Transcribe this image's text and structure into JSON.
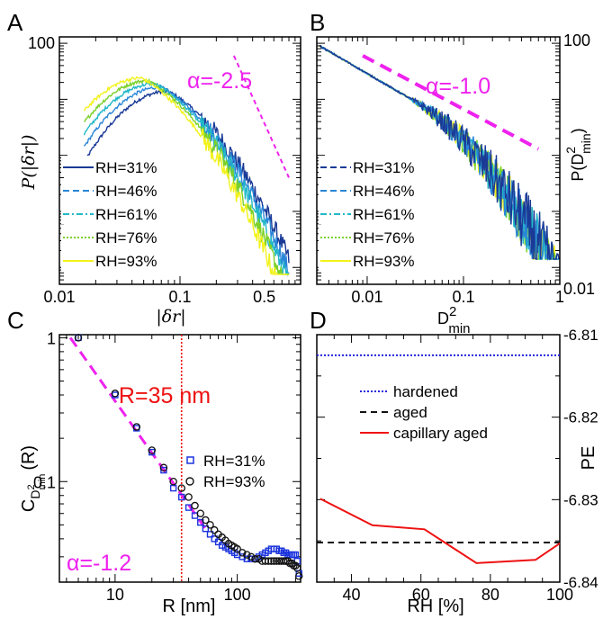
{
  "chart_data": [
    {
      "panel": "A",
      "type": "line",
      "panel_label": "A",
      "xlabel": "|δr|",
      "ylabel": "P(|δr|)",
      "xscale": "log",
      "yscale": "log",
      "xlim": [
        0.01,
        1
      ],
      "x_ticks": [
        {
          "value": 0.01,
          "label": "0.01"
        },
        {
          "value": 0.1,
          "label": "0.1"
        },
        {
          "value": 0.5,
          "label": "0.5"
        }
      ],
      "y_ticks": [
        {
          "value": 100,
          "label": "100"
        }
      ],
      "ylim": [
        0.005,
        130
      ],
      "legend_position": "bottom-left",
      "annotation": "α=-2.5",
      "guide_line": {
        "points": [
          [
            0.28,
            60
          ],
          [
            0.8,
            0.4
          ]
        ],
        "color": "#ee22ee",
        "style": "short-dash"
      },
      "series": [
        {
          "name": "RH=31%",
          "color": "#1a3a96",
          "style": "solid",
          "peak": 0.08
        },
        {
          "name": "RH=46%",
          "color": "#2a86d8",
          "style": "dash",
          "peak": 0.07
        },
        {
          "name": "RH=61%",
          "color": "#22b8c8",
          "style": "dashdot",
          "peak": 0.062
        },
        {
          "name": "RH=76%",
          "color": "#7cd02a",
          "style": "dot",
          "peak": 0.055
        },
        {
          "name": "RH=93%",
          "color": "#f2f21a",
          "style": "solid",
          "peak": 0.048
        }
      ]
    },
    {
      "panel": "B",
      "type": "line",
      "panel_label": "B",
      "xlabel": "D2min",
      "xlabel_main": "D",
      "xlabel_sup": "2",
      "xlabel_sub": "min",
      "ylabel_main": "P(D",
      "ylabel_sup": "2",
      "ylabel_sub": "min",
      "ylabel_end": ")",
      "xscale": "log",
      "yscale": "log",
      "xlim": [
        0.003,
        1
      ],
      "x_ticks": [
        {
          "value": 0.01,
          "label": "0.01"
        },
        {
          "value": 0.1,
          "label": "0.1"
        },
        {
          "value": 1,
          "label": "1"
        }
      ],
      "y_ticks_right": [
        {
          "value": 100,
          "label": "100"
        },
        {
          "value": 0.01,
          "label": "0.01"
        }
      ],
      "legend_position": "bottom-left",
      "annotation": "α=-1.0",
      "guide_line": {
        "points": [
          [
            0.009,
            60
          ],
          [
            0.6,
            1.3
          ]
        ],
        "color": "#ee22ee",
        "style": "dash"
      },
      "series": [
        {
          "name": "RH=31%",
          "color": "#1a3a96",
          "style": "dash"
        },
        {
          "name": "RH=46%",
          "color": "#2a86d8",
          "style": "dash"
        },
        {
          "name": "RH=61%",
          "color": "#22b8c8",
          "style": "dashdot"
        },
        {
          "name": "RH=76%",
          "color": "#7cd02a",
          "style": "dot"
        },
        {
          "name": "RH=93%",
          "color": "#f2f21a",
          "style": "solid"
        }
      ]
    },
    {
      "panel": "C",
      "type": "scatter",
      "panel_label": "C",
      "xlabel": "R [nm]",
      "ylabel_main": "C",
      "ylabel_sub": "D",
      "ylabel_subsup": "2",
      "ylabel_subsub": "min",
      "ylabel_end": "(R)",
      "xscale": "log",
      "yscale": "log",
      "xlim": [
        3.5,
        330
      ],
      "ylim": [
        0.02,
        1.05
      ],
      "x_ticks": [
        {
          "value": 10,
          "label": "10"
        },
        {
          "value": 100,
          "label": "100"
        }
      ],
      "y_ticks": [
        {
          "value": 1,
          "label": "1"
        },
        {
          "value": 0.1,
          "label": "0.1"
        }
      ],
      "vline": {
        "x": 35,
        "label": "R=35 nm",
        "color": "#ee1111"
      },
      "annotation": "α=-1.2",
      "guide_line": {
        "points": [
          [
            4.3,
            1.0
          ],
          [
            57,
            0.045
          ]
        ],
        "color": "#ee22ee",
        "style": "dash"
      },
      "legend_position": "center-right",
      "series": [
        {
          "name": "RH=31%",
          "marker": "square",
          "color": "#1a33dd",
          "x": [
            5,
            10,
            15,
            20,
            25,
            30,
            35,
            40,
            45,
            50,
            55,
            60,
            65,
            70,
            75,
            80,
            85,
            90,
            95,
            100,
            110,
            120,
            130,
            140,
            150,
            160,
            170,
            180,
            190,
            200,
            210,
            220,
            230,
            240,
            250,
            260,
            270,
            280,
            290,
            300,
            310,
            320
          ],
          "y": [
            1.0,
            0.4,
            0.235,
            0.16,
            0.12,
            0.09,
            0.078,
            0.066,
            0.058,
            0.052,
            0.047,
            0.043,
            0.04,
            0.038,
            0.036,
            0.035,
            0.034,
            0.033,
            0.032,
            0.031,
            0.03,
            0.029,
            0.029,
            0.029,
            0.03,
            0.031,
            0.032,
            0.033,
            0.034,
            0.034,
            0.034,
            0.033,
            0.033,
            0.032,
            0.032,
            0.031,
            0.031,
            0.031,
            0.031,
            0.031,
            0.028,
            0.023
          ]
        },
        {
          "name": "RH=93%",
          "marker": "circle",
          "color": "#111111",
          "x": [
            5,
            10,
            15,
            20,
            25,
            30,
            35,
            40,
            45,
            50,
            55,
            60,
            65,
            70,
            75,
            80,
            85,
            90,
            95,
            100,
            110,
            120,
            130,
            140,
            150,
            160,
            170,
            180,
            190,
            200,
            210,
            220,
            230,
            240,
            250,
            260,
            270,
            280,
            290,
            300,
            310,
            320
          ],
          "y": [
            1.0,
            0.41,
            0.24,
            0.165,
            0.125,
            0.1,
            0.09,
            0.078,
            0.068,
            0.06,
            0.054,
            0.05,
            0.046,
            0.043,
            0.041,
            0.039,
            0.037,
            0.036,
            0.035,
            0.034,
            0.032,
            0.031,
            0.03,
            0.029,
            0.029,
            0.028,
            0.028,
            0.028,
            0.028,
            0.028,
            0.028,
            0.028,
            0.028,
            0.028,
            0.028,
            0.028,
            0.027,
            0.027,
            0.026,
            0.026,
            0.025,
            0.022
          ]
        }
      ]
    },
    {
      "panel": "D",
      "type": "line",
      "panel_label": "D",
      "xlabel": "RH [%]",
      "ylabel": "PE",
      "xlim": [
        30,
        100
      ],
      "ylim": [
        -6.84,
        -6.81
      ],
      "x_ticks": [
        40,
        60,
        80,
        100
      ],
      "y_ticks": [
        -6.81,
        -6.82,
        -6.83,
        -6.84
      ],
      "legend_position": "center-left",
      "series": [
        {
          "name": "hardened",
          "color": "#2222dd",
          "style": "dot",
          "x": [
            30,
            100
          ],
          "y": [
            -6.8125,
            -6.8125
          ]
        },
        {
          "name": "aged",
          "color": "#111111",
          "style": "dash",
          "x": [
            30,
            100
          ],
          "y": [
            -6.8352,
            -6.8352
          ]
        },
        {
          "name": "capillary aged",
          "color": "#ee1111",
          "style": "solid",
          "x": [
            31,
            46,
            61,
            76,
            93,
            100
          ],
          "y": [
            -6.8299,
            -6.8331,
            -6.8336,
            -6.8377,
            -6.8373,
            -6.8353
          ]
        }
      ]
    }
  ]
}
